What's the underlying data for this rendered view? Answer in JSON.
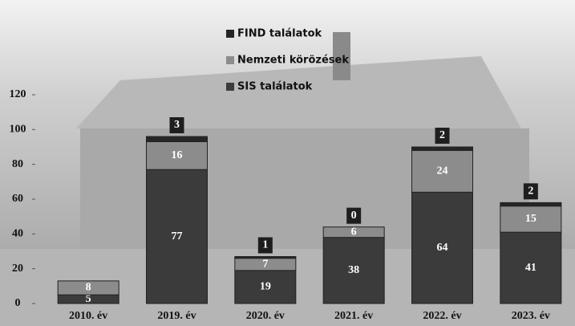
{
  "chart_data": {
    "type": "stacked-bar",
    "categories": [
      "2010. év",
      "2019. év",
      "2020. év",
      "2021. év",
      "2022. év",
      "2023. év"
    ],
    "series": [
      {
        "name": "SIS találatok",
        "color": "#3b3b3b",
        "values": [
          5,
          77,
          19,
          38,
          64,
          41
        ]
      },
      {
        "name": "Nemzeti körözések",
        "color": "#8c8c8c",
        "values": [
          8,
          16,
          7,
          6,
          24,
          15
        ]
      },
      {
        "name": "FIND találatok",
        "color": "#262626",
        "values": [
          null,
          3,
          1,
          0,
          2,
          2
        ]
      }
    ],
    "ylim": [
      0,
      120
    ],
    "yticks": [
      0,
      20,
      40,
      60,
      80,
      100,
      120
    ]
  }
}
